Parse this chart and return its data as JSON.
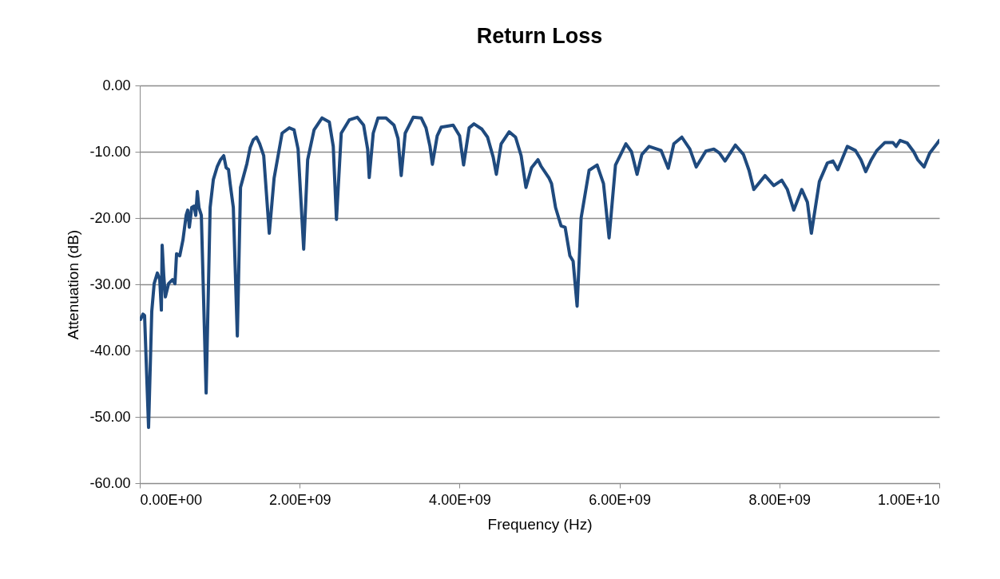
{
  "chart_data": {
    "type": "line",
    "title": "Return Loss",
    "xlabel": "Frequency (Hz)",
    "ylabel": "Attenuation (dB)",
    "x": [
      10000000.0,
      40000000.0,
      60000000.0,
      110000000.0,
      150000000.0,
      180000000.0,
      220000000.0,
      250000000.0,
      270000000.0,
      280000000.0,
      300000000.0,
      320000000.0,
      360000000.0,
      410000000.0,
      440000000.0,
      460000000.0,
      500000000.0,
      540000000.0,
      580000000.0,
      600000000.0,
      620000000.0,
      650000000.0,
      680000000.0,
      700000000.0,
      720000000.0,
      740000000.0,
      770000000.0,
      830000000.0,
      880000000.0,
      920000000.0,
      970000000.0,
      1010000000.0,
      1050000000.0,
      1080000000.0,
      1110000000.0,
      1130000000.0,
      1170000000.0,
      1220000000.0,
      1260000000.0,
      1300000000.0,
      1340000000.0,
      1380000000.0,
      1420000000.0,
      1460000000.0,
      1500000000.0,
      1550000000.0,
      1620000000.0,
      1680000000.0,
      1780000000.0,
      1870000000.0,
      1930000000.0,
      1980000000.0,
      2050000000.0,
      2100000000.0,
      2180000000.0,
      2280000000.0,
      2370000000.0,
      2420000000.0,
      2460000000.0,
      2520000000.0,
      2620000000.0,
      2720000000.0,
      2800000000.0,
      2850000000.0,
      2870000000.0,
      2920000000.0,
      2980000000.0,
      3080000000.0,
      3180000000.0,
      3230000000.0,
      3270000000.0,
      3320000000.0,
      3420000000.0,
      3520000000.0,
      3580000000.0,
      3630000000.0,
      3660000000.0,
      3720000000.0,
      3770000000.0,
      3920000000.0,
      4000000000.0,
      4050000000.0,
      4120000000.0,
      4180000000.0,
      4280000000.0,
      4350000000.0,
      4420000000.0,
      4460000000.0,
      4520000000.0,
      4620000000.0,
      4700000000.0,
      4770000000.0,
      4830000000.0,
      4900000000.0,
      4980000000.0,
      5020000000.0,
      5120000000.0,
      5150000000.0,
      5200000000.0,
      5270000000.0,
      5320000000.0,
      5380000000.0,
      5420000000.0,
      5470000000.0,
      5520000000.0,
      5620000000.0,
      5720000000.0,
      5800000000.0,
      5870000000.0,
      5950000000.0,
      6080000000.0,
      6150000000.0,
      6220000000.0,
      6280000000.0,
      6370000000.0,
      6520000000.0,
      6610000000.0,
      6680000000.0,
      6780000000.0,
      6880000000.0,
      6960000000.0,
      7080000000.0,
      7180000000.0,
      7250000000.0,
      7320000000.0,
      7450000000.0,
      7550000000.0,
      7620000000.0,
      7680000000.0,
      7820000000.0,
      7930000000.0,
      8030000000.0,
      8100000000.0,
      8180000000.0,
      8280000000.0,
      8350000000.0,
      8400000000.0,
      8500000000.0,
      8600000000.0,
      8670000000.0,
      8730000000.0,
      8850000000.0,
      8950000000.0,
      9020000000.0,
      9080000000.0,
      9150000000.0,
      9220000000.0,
      9320000000.0,
      9420000000.0,
      9460000000.0,
      9510000000.0,
      9600000000.0,
      9680000000.0,
      9730000000.0,
      9810000000.0,
      9880000000.0,
      9970000000.0,
      10000000000.0
    ],
    "series": [
      {
        "color": "#1f4a7e",
        "values": [
          -35.3,
          -34.5,
          -34.7,
          -51.6,
          -34.1,
          -29.9,
          -28.3,
          -29.3,
          -33.9,
          -24.1,
          -28.7,
          -31.9,
          -29.9,
          -29.3,
          -29.9,
          -25.4,
          -25.7,
          -23.3,
          -19.6,
          -18.8,
          -21.4,
          -18.4,
          -18.2,
          -19.6,
          -16.0,
          -18.4,
          -19.6,
          -46.4,
          -18.4,
          -14.2,
          -12.2,
          -11.2,
          -10.6,
          -12.4,
          -12.7,
          -14.8,
          -18.4,
          -37.8,
          -15.4,
          -13.6,
          -11.8,
          -9.4,
          -8.2,
          -7.8,
          -8.8,
          -10.6,
          -22.3,
          -14.0,
          -7.2,
          -6.4,
          -6.7,
          -9.6,
          -24.7,
          -11.2,
          -6.7,
          -4.9,
          -5.5,
          -9.2,
          -20.2,
          -7.2,
          -5.2,
          -4.8,
          -6.0,
          -9.6,
          -13.9,
          -7.2,
          -4.9,
          -4.9,
          -6.0,
          -8.0,
          -13.6,
          -7.2,
          -4.8,
          -4.9,
          -6.4,
          -9.2,
          -11.9,
          -7.6,
          -6.3,
          -6.0,
          -7.6,
          -12.0,
          -6.4,
          -5.8,
          -6.6,
          -7.8,
          -10.8,
          -13.4,
          -8.8,
          -7.0,
          -7.8,
          -10.6,
          -15.4,
          -12.4,
          -11.2,
          -12.2,
          -14.0,
          -14.8,
          -18.4,
          -21.2,
          -21.4,
          -25.7,
          -26.5,
          -33.3,
          -20.0,
          -12.8,
          -12.0,
          -14.8,
          -23.0,
          -12.0,
          -8.8,
          -10.0,
          -13.4,
          -10.4,
          -9.2,
          -9.8,
          -12.5,
          -8.8,
          -7.8,
          -9.6,
          -12.3,
          -9.9,
          -9.6,
          -10.2,
          -11.4,
          -9.0,
          -10.4,
          -12.8,
          -15.7,
          -13.6,
          -15.1,
          -14.3,
          -15.7,
          -18.8,
          -15.7,
          -17.6,
          -22.3,
          -14.5,
          -11.7,
          -11.4,
          -12.7,
          -9.2,
          -9.8,
          -11.2,
          -13.0,
          -11.2,
          -9.8,
          -8.6,
          -8.6,
          -9.2,
          -8.3,
          -8.7,
          -10.0,
          -11.2,
          -12.3,
          -10.2,
          -8.8,
          -8.3
        ]
      }
    ],
    "xlim": [
      0,
      10000000000.0
    ],
    "xticks": [
      {
        "value": 0,
        "label": "0.00E+00"
      },
      {
        "value": 2000000000.0,
        "label": "2.00E+09"
      },
      {
        "value": 4000000000.0,
        "label": "4.00E+09"
      },
      {
        "value": 6000000000.0,
        "label": "6.00E+09"
      },
      {
        "value": 8000000000.0,
        "label": "8.00E+09"
      },
      {
        "value": 10000000000.0,
        "label": "1.00E+10"
      }
    ],
    "ylim": [
      -60,
      0
    ],
    "yticks": [
      {
        "value": -60,
        "label": "-60.00"
      },
      {
        "value": -50,
        "label": "-50.00"
      },
      {
        "value": -40,
        "label": "-40.00"
      },
      {
        "value": -30,
        "label": "-30.00"
      },
      {
        "value": -20,
        "label": "-20.00"
      },
      {
        "value": -10,
        "label": "-10.00"
      },
      {
        "value": 0,
        "label": "0.00"
      }
    ],
    "grid": "y",
    "marker": "none",
    "line_style": "solid"
  }
}
